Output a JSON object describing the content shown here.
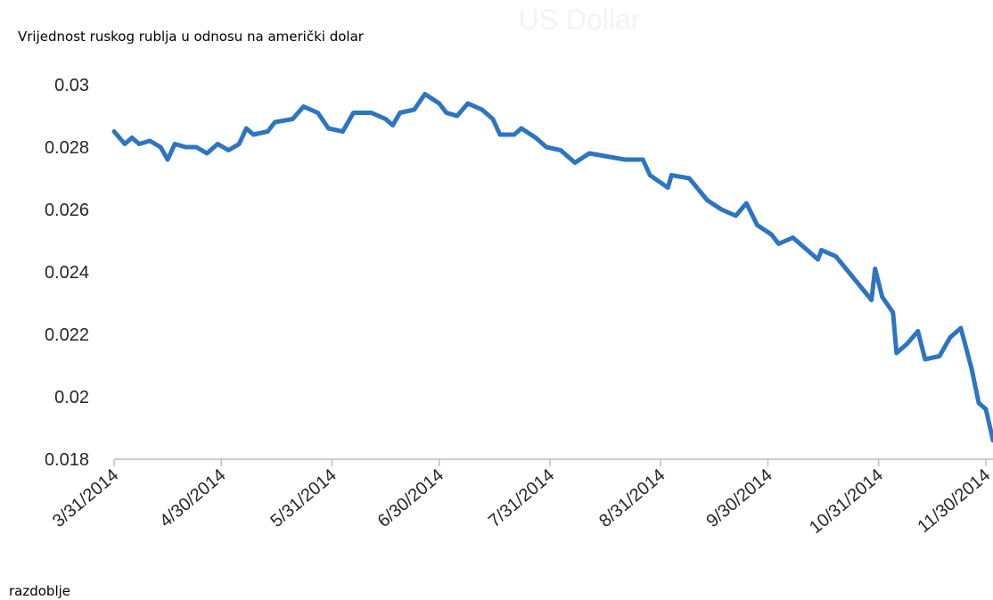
{
  "chart_data": {
    "type": "line",
    "title": "US Dollar",
    "y_axis_label": "Vrijednost ruskog rublja u odnosu na američki dolar",
    "x_axis_label": "razdoblje",
    "color": "#2e75c0",
    "x": [
      "3/31/2014",
      "4/3/2014",
      "4/5/2014",
      "4/7/2014",
      "4/10/2014",
      "4/13/2014",
      "4/15/2014",
      "4/17/2014",
      "4/20/2014",
      "4/23/2014",
      "4/26/2014",
      "4/29/2014",
      "5/2/2014",
      "5/5/2014",
      "5/7/2014",
      "5/9/2014",
      "5/13/2014",
      "5/15/2014",
      "5/20/2014",
      "5/23/2014",
      "5/27/2014",
      "5/30/2014",
      "6/3/2014",
      "6/6/2014",
      "6/11/2014",
      "6/15/2014",
      "6/17/2014",
      "6/19/2014",
      "6/23/2014",
      "6/26/2014",
      "6/30/2014",
      "7/2/2014",
      "7/5/2014",
      "7/8/2014",
      "7/12/2014",
      "7/15/2014",
      "7/17/2014",
      "7/21/2014",
      "7/23/2014",
      "7/27/2014",
      "7/30/2014",
      "8/3/2014",
      "8/7/2014",
      "8/11/2014",
      "8/16/2014",
      "8/21/2014",
      "8/26/2014",
      "8/28/2014",
      "9/2/2014",
      "9/3/2014",
      "9/8/2014",
      "9/13/2014",
      "9/17/2014",
      "9/21/2014",
      "9/24/2014",
      "9/27/2014",
      "10/1/2014",
      "10/3/2014",
      "10/7/2014",
      "10/11/2014",
      "10/14/2014",
      "10/15/2014",
      "10/19/2014",
      "10/24/2014",
      "10/29/2014",
      "10/30/2014",
      "11/1/2014",
      "11/4/2014",
      "11/5/2014",
      "11/8/2014",
      "11/11/2014",
      "11/13/2014",
      "11/17/2014",
      "11/20/2014",
      "11/23/2014",
      "11/26/2014",
      "11/28/2014",
      "11/30/2014",
      "12/2/2014"
    ],
    "values": [
      0.0285,
      0.0281,
      0.0283,
      0.0281,
      0.0282,
      0.028,
      0.0276,
      0.0281,
      0.028,
      0.028,
      0.0278,
      0.0281,
      0.0279,
      0.0281,
      0.0286,
      0.0284,
      0.0285,
      0.0288,
      0.0289,
      0.0293,
      0.0291,
      0.0286,
      0.0285,
      0.0291,
      0.0291,
      0.0289,
      0.0287,
      0.0291,
      0.0292,
      0.0297,
      0.0294,
      0.0291,
      0.029,
      0.0294,
      0.0292,
      0.0289,
      0.0284,
      0.0284,
      0.0286,
      0.0283,
      0.028,
      0.0279,
      0.0275,
      0.0278,
      0.0277,
      0.0276,
      0.0276,
      0.0271,
      0.0267,
      0.0271,
      0.027,
      0.0263,
      0.026,
      0.0258,
      0.0262,
      0.0255,
      0.0252,
      0.0249,
      0.0251,
      0.0247,
      0.0244,
      0.0247,
      0.0245,
      0.0238,
      0.0231,
      0.0241,
      0.0232,
      0.0227,
      0.0214,
      0.0217,
      0.0221,
      0.0212,
      0.0213,
      0.0219,
      0.0222,
      0.0209,
      0.0198,
      0.0196,
      0.0186
    ],
    "xlim": [
      "3/31/2014",
      "12/2/2014"
    ],
    "xticks": [
      "3/31/2014",
      "4/30/2014",
      "5/31/2014",
      "6/30/2014",
      "7/31/2014",
      "8/31/2014",
      "9/30/2014",
      "10/31/2014",
      "11/30/2014"
    ],
    "ylim": [
      0.018,
      0.03
    ],
    "yticks": [
      0.018,
      0.02,
      0.022,
      0.024,
      0.026,
      0.028,
      0.03
    ],
    "grid": false
  }
}
